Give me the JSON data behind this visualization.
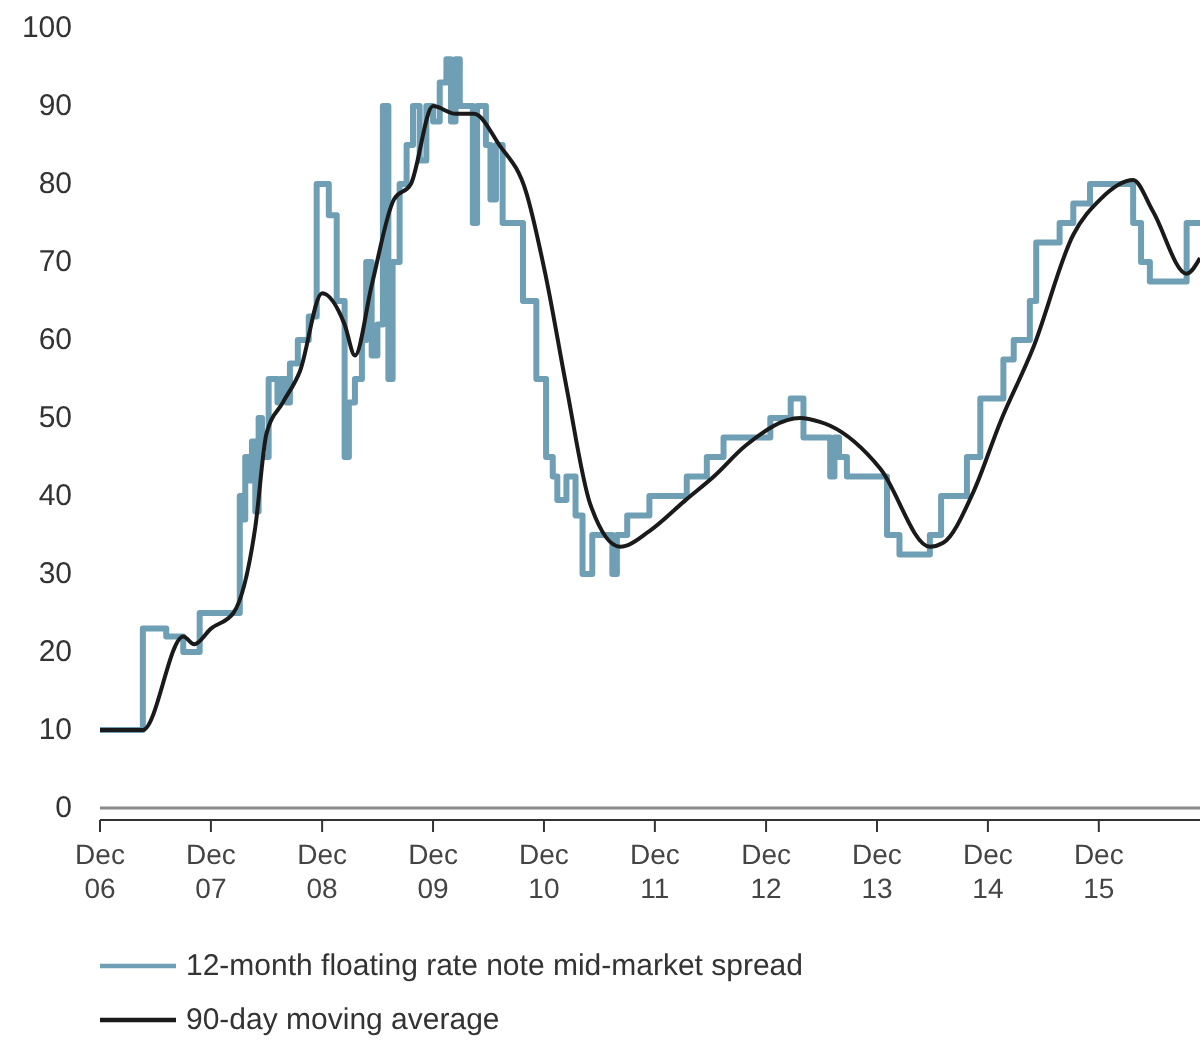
{
  "chart_data": {
    "type": "line",
    "xlim": [
      "2006-12-01",
      "2016-10-29"
    ],
    "xticks": [
      {
        "value": "2006-12-01",
        "label": "Dec 06"
      },
      {
        "value": "2007-12-01",
        "label": "Dec 07"
      },
      {
        "value": "2008-12-01",
        "label": "Dec 08"
      },
      {
        "value": "2009-12-01",
        "label": "Dec 09"
      },
      {
        "value": "2010-12-01",
        "label": "Dec 10"
      },
      {
        "value": "2011-12-01",
        "label": "Dec 11"
      },
      {
        "value": "2012-12-01",
        "label": "Dec 12"
      },
      {
        "value": "2013-12-01",
        "label": "Dec 13"
      },
      {
        "value": "2014-12-01",
        "label": "Dec 14"
      },
      {
        "value": "2015-12-01",
        "label": "Dec 15"
      }
    ],
    "ylim": [
      0,
      100
    ],
    "yticks": [
      0,
      10,
      20,
      30,
      40,
      50,
      60,
      70,
      80,
      90,
      100
    ],
    "grid": false,
    "legend": "bottom",
    "series": [
      {
        "name": "12-month floating rate note mid-market spread",
        "type": "step",
        "color": "#6f9fb4",
        "x": [
          "2006-12-01",
          "2007-04-21",
          "2007-07-07",
          "2007-09-01",
          "2007-10-25",
          "2008-03-05",
          "2008-03-12",
          "2008-03-23",
          "2008-04-03",
          "2008-04-14",
          "2008-04-25",
          "2008-05-06",
          "2008-05-17",
          "2008-06-08",
          "2008-07-07",
          "2008-07-18",
          "2008-08-06",
          "2008-08-17",
          "2008-09-12",
          "2008-10-18",
          "2008-11-13",
          "2008-12-23",
          "2009-01-18",
          "2009-02-13",
          "2009-02-27",
          "2009-03-19",
          "2009-04-11",
          "2009-04-25",
          "2009-05-13",
          "2009-06-01",
          "2009-06-19",
          "2009-07-07",
          "2009-07-21",
          "2009-08-13",
          "2009-09-05",
          "2009-09-26",
          "2009-10-18",
          "2009-11-09",
          "2009-12-01",
          "2009-12-23",
          "2010-01-14",
          "2010-01-29",
          "2010-02-13",
          "2010-02-27",
          "2010-04-11",
          "2010-04-25",
          "2010-05-24",
          "2010-06-08",
          "2010-06-26",
          "2010-07-18",
          "2010-09-23",
          "2010-11-06",
          "2010-12-08",
          "2010-12-30",
          "2011-01-14",
          "2011-02-13",
          "2011-03-15",
          "2011-04-07",
          "2011-05-09",
          "2011-07-14",
          "2011-07-29",
          "2011-09-01",
          "2011-11-13",
          "2012-03-15",
          "2012-05-20",
          "2012-07-14",
          "2012-12-15",
          "2013-02-20",
          "2013-04-03",
          "2013-06-30",
          "2013-07-14",
          "2013-07-29",
          "2013-08-24",
          "2014-01-03",
          "2014-02-13",
          "2014-05-24",
          "2014-06-30",
          "2014-09-23",
          "2014-11-06",
          "2015-01-21",
          "2015-02-24",
          "2015-04-18",
          "2015-05-09",
          "2015-07-25",
          "2015-09-08",
          "2015-11-02",
          "2016-03-23",
          "2016-04-18",
          "2016-05-17",
          "2016-09-15",
          "2016-10-29"
        ],
        "values": [
          10,
          23,
          22,
          20,
          25,
          40,
          37,
          45,
          42,
          47,
          38,
          50,
          45,
          55,
          52,
          55,
          52,
          57,
          60,
          63,
          80,
          76,
          65,
          45,
          52,
          55,
          60,
          70,
          58,
          62,
          90,
          55,
          70,
          80,
          85,
          90,
          83,
          90,
          88,
          93,
          96,
          88,
          96,
          90,
          75,
          90,
          85,
          78,
          85,
          75,
          65,
          55,
          45,
          42.5,
          39.5,
          42.5,
          37.5,
          30,
          35,
          30,
          35,
          37.5,
          40,
          42.5,
          45,
          47.5,
          50,
          52.5,
          47.5,
          42.5,
          47.5,
          45,
          42.5,
          35,
          32.5,
          35,
          40,
          45,
          52.5,
          57.5,
          60,
          65,
          72.5,
          75,
          77.5,
          80,
          75,
          70,
          67.5,
          75,
          75
        ]
      },
      {
        "name": "90-day moving average",
        "color": "#1a1a1a",
        "x": [
          "2006-12-01",
          "2007-04-21",
          "2007-09-01",
          "2007-10-07",
          "2007-12-01",
          "2008-02-13",
          "2008-04-25",
          "2008-06-01",
          "2008-07-25",
          "2008-09-19",
          "2008-12-01",
          "2009-02-13",
          "2009-03-19",
          "2009-05-13",
          "2009-07-25",
          "2009-09-19",
          "2009-12-01",
          "2010-02-13",
          "2010-04-14",
          "2010-07-07",
          "2010-10-03",
          "2010-12-08",
          "2011-02-13",
          "2011-05-02",
          "2011-08-09",
          "2011-11-13",
          "2012-03-12",
          "2012-06-12",
          "2012-09-26",
          "2013-03-23",
          "2013-05-27",
          "2013-06-30",
          "2013-12-12",
          "2014-05-24",
          "2014-07-07",
          "2014-10-14",
          "2015-01-11",
          "2015-04-29",
          "2015-09-08",
          "2015-12-05",
          "2016-03-23",
          "2016-05-27",
          "2016-09-15",
          "2016-10-29"
        ],
        "values": [
          10,
          10,
          22,
          21,
          23,
          25,
          36,
          48,
          52,
          56,
          66,
          62,
          58,
          67,
          78,
          80,
          90,
          89,
          89,
          85,
          79,
          68,
          54,
          39,
          33.5,
          35.5,
          39.5,
          42.5,
          46.5,
          50,
          49.5,
          49,
          43.5,
          33.5,
          34,
          40.5,
          49.5,
          59,
          73.5,
          78,
          80.5,
          76.5,
          68.5,
          70.5
        ]
      }
    ]
  }
}
